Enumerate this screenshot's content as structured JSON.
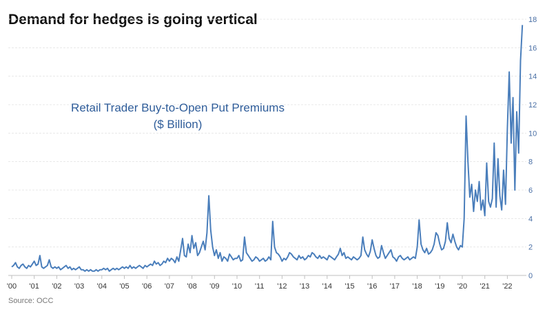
{
  "chart_data": {
    "type": "line",
    "title": "Demand for hedges is going vertical",
    "annotation": [
      "Retail Trader Buy-to-Open Put Premiums",
      "($ Billion)"
    ],
    "source": "Source: OCC",
    "x_tick_labels": [
      "'00",
      "'01",
      "'02",
      "'03",
      "'04",
      "'05",
      "'06",
      "'07",
      "'08",
      "'09",
      "'10",
      "'11",
      "'12",
      "'13",
      "'14",
      "'15",
      "'16",
      "'17",
      "'18",
      "'19",
      "'20",
      "'21",
      "'22"
    ],
    "y_tick_labels": [
      "0",
      "2",
      "4",
      "6",
      "8",
      "10",
      "12",
      "14",
      "16",
      "18"
    ],
    "ylim": [
      0,
      18
    ],
    "xlim": [
      2000,
      2023
    ],
    "y_axis_position": "right",
    "grid": "horizontal dashed",
    "line_color": "#4a7ebb",
    "frequency": "monthly",
    "start": "2000-01",
    "series": [
      {
        "values": [
          0.6,
          0.7,
          0.9,
          0.6,
          0.5,
          0.7,
          0.8,
          0.6,
          0.5,
          0.7,
          0.6,
          0.8,
          1.0,
          0.7,
          0.8,
          1.4,
          0.6,
          0.5,
          0.6,
          0.7,
          1.1,
          0.6,
          0.5,
          0.6,
          0.5,
          0.6,
          0.4,
          0.5,
          0.6,
          0.7,
          0.5,
          0.6,
          0.4,
          0.5,
          0.4,
          0.5,
          0.6,
          0.4,
          0.4,
          0.3,
          0.4,
          0.3,
          0.4,
          0.3,
          0.3,
          0.4,
          0.3,
          0.4,
          0.4,
          0.5,
          0.4,
          0.5,
          0.3,
          0.4,
          0.5,
          0.4,
          0.5,
          0.4,
          0.5,
          0.6,
          0.5,
          0.6,
          0.5,
          0.7,
          0.5,
          0.6,
          0.5,
          0.6,
          0.7,
          0.6,
          0.5,
          0.7,
          0.6,
          0.7,
          0.8,
          0.7,
          1.0,
          0.8,
          0.9,
          0.7,
          0.8,
          1.0,
          0.9,
          1.2,
          1.0,
          1.2,
          1.1,
          0.9,
          1.3,
          1.0,
          1.8,
          2.6,
          1.4,
          1.3,
          2.2,
          1.6,
          2.8,
          1.9,
          2.3,
          1.4,
          1.6,
          2.0,
          2.4,
          1.8,
          3.0,
          5.6,
          3.2,
          2.0,
          1.4,
          1.8,
          1.2,
          1.6,
          1.0,
          1.3,
          1.2,
          1.0,
          1.5,
          1.3,
          1.1,
          1.2,
          1.2,
          1.4,
          1.0,
          1.1,
          2.7,
          1.6,
          1.4,
          1.2,
          1.0,
          1.1,
          1.3,
          1.2,
          1.0,
          1.1,
          1.2,
          1.0,
          1.1,
          1.3,
          1.1,
          3.8,
          2.0,
          1.6,
          1.5,
          1.3,
          1.0,
          1.2,
          1.1,
          1.3,
          1.6,
          1.5,
          1.3,
          1.2,
          1.1,
          1.4,
          1.2,
          1.3,
          1.1,
          1.2,
          1.4,
          1.3,
          1.6,
          1.5,
          1.3,
          1.2,
          1.4,
          1.2,
          1.3,
          1.2,
          1.1,
          1.4,
          1.3,
          1.2,
          1.1,
          1.3,
          1.5,
          1.9,
          1.4,
          1.6,
          1.2,
          1.3,
          1.2,
          1.1,
          1.3,
          1.2,
          1.1,
          1.2,
          1.4,
          2.7,
          1.8,
          1.5,
          1.3,
          1.7,
          2.5,
          1.9,
          1.4,
          1.2,
          1.3,
          2.1,
          1.6,
          1.2,
          1.4,
          1.6,
          1.8,
          1.3,
          1.2,
          1.0,
          1.3,
          1.4,
          1.2,
          1.1,
          1.2,
          1.3,
          1.1,
          1.2,
          1.3,
          1.2,
          2.0,
          3.9,
          2.2,
          1.8,
          1.6,
          1.9,
          1.5,
          1.6,
          1.8,
          2.2,
          3.0,
          2.8,
          2.2,
          1.8,
          1.9,
          2.4,
          3.7,
          2.6,
          2.3,
          2.9,
          2.4,
          2.0,
          1.8,
          2.1,
          2.0,
          4.0,
          11.2,
          8.0,
          5.5,
          6.4,
          4.5,
          6.0,
          5.2,
          6.6,
          4.6,
          5.3,
          4.2,
          7.9,
          5.2,
          4.8,
          5.4,
          9.3,
          4.8,
          8.2,
          5.6,
          4.6,
          7.4,
          5.0,
          10.3,
          14.3,
          9.3,
          12.5,
          6.0,
          11.5,
          8.6,
          15.1,
          17.6
        ]
      }
    ]
  }
}
